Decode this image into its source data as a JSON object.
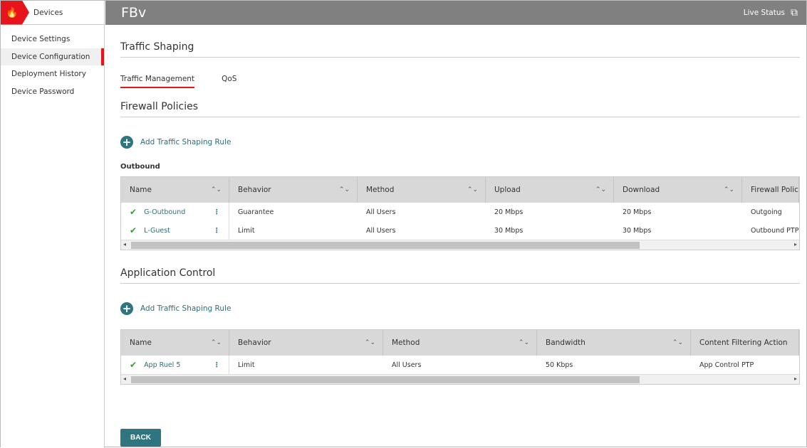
{
  "sidebar": {
    "title": "Devices",
    "items": [
      {
        "label": "Device Settings"
      },
      {
        "label": "Device Configuration",
        "active": true
      },
      {
        "label": "Deployment History"
      },
      {
        "label": "Device Password"
      }
    ]
  },
  "header": {
    "title": "FBv",
    "live_status": "Live Status"
  },
  "main": {
    "section_title": "Traffic Shaping",
    "tabs": [
      {
        "label": "Traffic Management",
        "active": true
      },
      {
        "label": "QoS"
      }
    ],
    "firewall": {
      "title": "Firewall Policies",
      "add_label": "Add Traffic Shaping Rule",
      "subheading": "Outbound",
      "columns": [
        "Name",
        "Behavior",
        "Method",
        "Upload",
        "Download",
        "Firewall Policie"
      ],
      "rows": [
        [
          "G-Outbound",
          "Guarantee",
          "All Users",
          "20 Mbps",
          "20 Mbps",
          "Outgoing"
        ],
        [
          "L-Guest",
          "Limit",
          "All Users",
          "30 Mbps",
          "30 Mbps",
          "Outbound PTP"
        ]
      ]
    },
    "appcontrol": {
      "title": "Application Control",
      "add_label": "Add Traffic Shaping Rule",
      "columns": [
        "Name",
        "Behavior",
        "Method",
        "Bandwidth",
        "Content Filtering Action"
      ],
      "rows": [
        [
          "App Ruel 5",
          "Limit",
          "All Users",
          "50 Kbps",
          "App Control PTP"
        ]
      ]
    },
    "back_label": "BACK"
  },
  "colors": {
    "accent": "#e8141b",
    "teal": "#2f7580",
    "topbar": "#808080"
  }
}
